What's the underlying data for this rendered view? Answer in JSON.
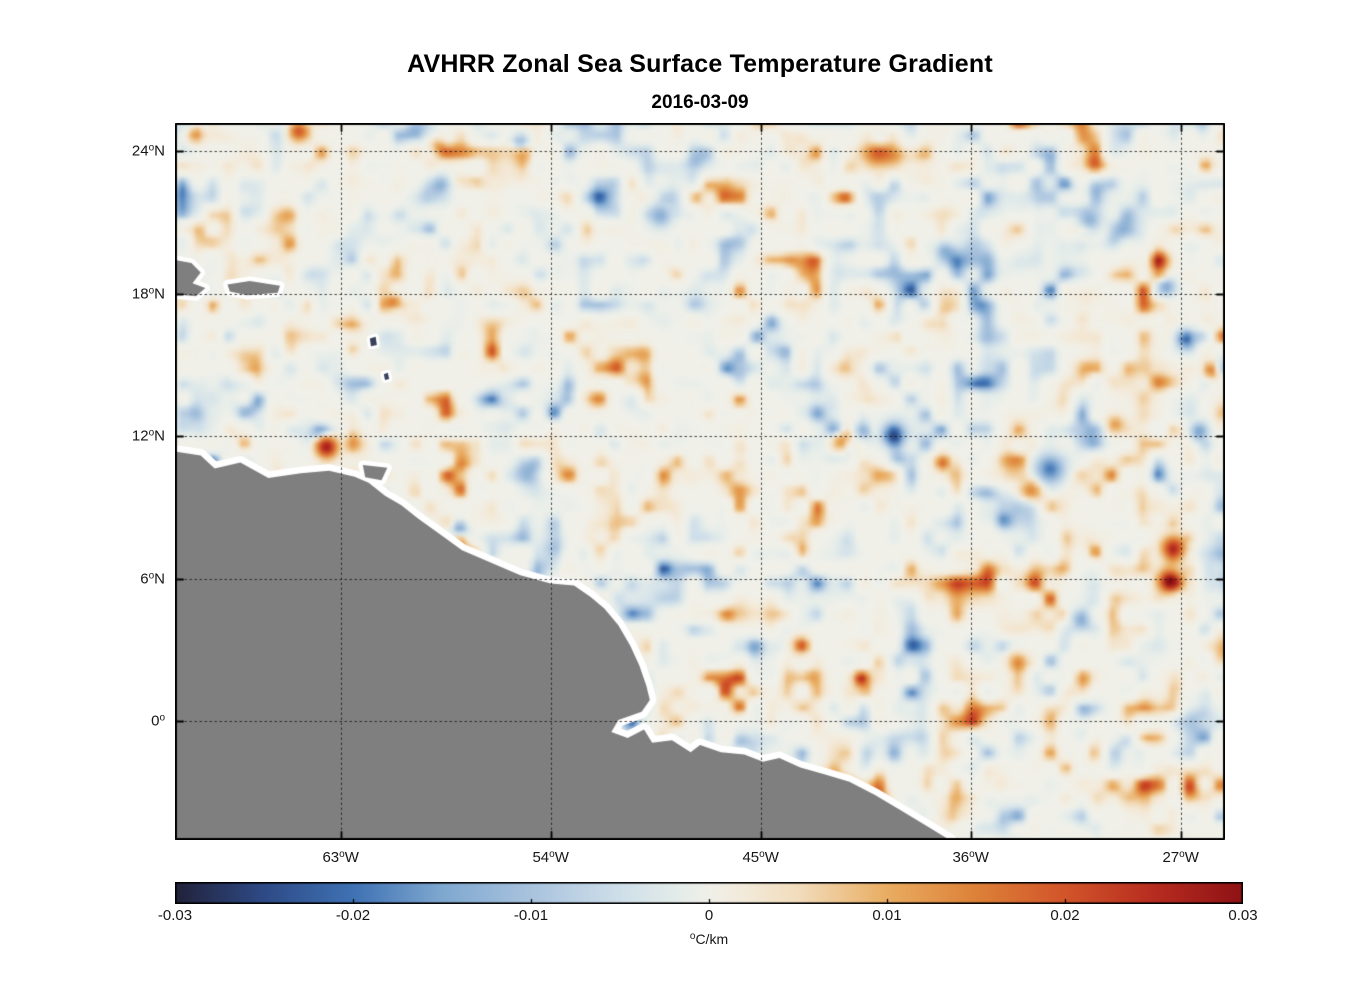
{
  "chart_data": {
    "type": "heatmap",
    "title": "AVHRR Zonal Sea Surface Temperature Gradient",
    "subtitle": "2016-03-09",
    "lon_range": [
      -70.1,
      -25.1
    ],
    "lat_range": [
      -5.0,
      25.2
    ],
    "grid": "dotted",
    "xticks": [
      {
        "text": "63",
        "sup": "o",
        "suffix": "W",
        "lon": -63
      },
      {
        "text": "54",
        "sup": "o",
        "suffix": "W",
        "lon": -54
      },
      {
        "text": "45",
        "sup": "o",
        "suffix": "W",
        "lon": -45
      },
      {
        "text": "36",
        "sup": "o",
        "suffix": "W",
        "lon": -36
      },
      {
        "text": "27",
        "sup": "o",
        "suffix": "W",
        "lon": -27
      }
    ],
    "yticks": [
      {
        "text": "24",
        "sup": "o",
        "suffix": "N",
        "lat": 24
      },
      {
        "text": "18",
        "sup": "o",
        "suffix": "N",
        "lat": 18
      },
      {
        "text": "12",
        "sup": "o",
        "suffix": "N",
        "lat": 12
      },
      {
        "text": "6",
        "sup": "o",
        "suffix": "N",
        "lat": 6
      },
      {
        "text": "0",
        "sup": "o",
        "suffix": "",
        "lat": 0
      }
    ],
    "colorbar": {
      "orientation": "horizontal",
      "range": [
        -0.03,
        0.03
      ],
      "tick_labels": [
        "-0.03",
        "-0.02",
        "-0.01",
        "0",
        "0.01",
        "0.02",
        "0.03"
      ],
      "unit": {
        "sup": "o",
        "text": "C/km"
      },
      "stops": [
        [
          0.0,
          "#22223a"
        ],
        [
          0.083,
          "#2e4a86"
        ],
        [
          0.167,
          "#3f72b4"
        ],
        [
          0.25,
          "#7fa8d0"
        ],
        [
          0.333,
          "#a9c3de"
        ],
        [
          0.417,
          "#cfdfe9"
        ],
        [
          0.47,
          "#e4ece9"
        ],
        [
          0.5,
          "#f0f0e9"
        ],
        [
          0.53,
          "#f3ebdc"
        ],
        [
          0.583,
          "#f2ddbd"
        ],
        [
          0.667,
          "#e9ad62"
        ],
        [
          0.75,
          "#dd8138"
        ],
        [
          0.833,
          "#d2552a"
        ],
        [
          0.917,
          "#b72c20"
        ],
        [
          1.0,
          "#8e1215"
        ]
      ]
    },
    "field": {
      "description": "Mottled mesoscale zonal SST gradient field, mostly near 0 C/km with scattered positive (orange) and negative (blue) anomalies",
      "noise_seed": 309,
      "noise_amplitude": 0.032,
      "features": [
        {
          "lon": -63.6,
          "lat": 11.55,
          "v": 0.028,
          "r": 0.5
        },
        {
          "lon": -64.8,
          "lat": 24.85,
          "v": 0.02,
          "r": 0.45
        },
        {
          "lon": -69.2,
          "lat": 24.7,
          "v": 0.013,
          "r": 0.35
        },
        {
          "lon": -58.8,
          "lat": 24.2,
          "v": 0.011,
          "r": 0.35
        },
        {
          "lon": -60.7,
          "lat": 17.7,
          "v": 0.011,
          "r": 0.3
        },
        {
          "lon": -41.4,
          "lat": 11.85,
          "v": 0.019,
          "r": 0.5
        },
        {
          "lon": -37.2,
          "lat": 10.9,
          "v": 0.018,
          "r": 0.35
        },
        {
          "lon": -33.4,
          "lat": 9.7,
          "v": 0.015,
          "r": 0.5
        },
        {
          "lon": -27.3,
          "lat": 7.3,
          "v": 0.024,
          "r": 0.55
        },
        {
          "lon": -27.5,
          "lat": 5.9,
          "v": 0.026,
          "r": 0.5
        },
        {
          "lon": -25.7,
          "lat": 14.8,
          "v": 0.02,
          "r": 0.35
        },
        {
          "lon": -40.7,
          "lat": 1.8,
          "v": 0.022,
          "r": 0.3
        },
        {
          "lon": -43.3,
          "lat": 3.2,
          "v": 0.013,
          "r": 0.4
        },
        {
          "lon": -34.0,
          "lat": 2.5,
          "v": 0.011,
          "r": 0.45
        },
        {
          "lon": -29.8,
          "lat": 12.5,
          "v": 0.012,
          "r": 0.4
        },
        {
          "lon": -39.3,
          "lat": 12.1,
          "v": -0.024,
          "r": 0.5
        },
        {
          "lon": -32.6,
          "lat": 10.6,
          "v": -0.02,
          "r": 0.65
        },
        {
          "lon": -26.8,
          "lat": 16.1,
          "v": -0.02,
          "r": 0.4
        },
        {
          "lon": -27.6,
          "lat": 18.3,
          "v": -0.015,
          "r": 0.4
        },
        {
          "lon": -26.2,
          "lat": 12.2,
          "v": -0.016,
          "r": 0.4
        },
        {
          "lon": -49.3,
          "lat": 21.3,
          "v": -0.014,
          "r": 0.5
        },
        {
          "lon": -58.7,
          "lat": 22.6,
          "v": -0.013,
          "r": 0.4
        },
        {
          "lon": -55.3,
          "lat": 24.4,
          "v": -0.011,
          "r": 0.35
        },
        {
          "lon": -57.9,
          "lat": 8.1,
          "v": -0.02,
          "r": 0.35
        },
        {
          "lon": -37.1,
          "lat": 19.8,
          "v": -0.013,
          "r": 0.4
        },
        {
          "lon": -30.9,
          "lat": 21.1,
          "v": -0.013,
          "r": 0.5
        },
        {
          "lon": -31.3,
          "lat": 4.3,
          "v": -0.012,
          "r": 0.4
        }
      ]
    },
    "land": {
      "fill": "#7f7f7f",
      "small_island_fill": "#39405c",
      "coast_buffer_color": "#ffffff",
      "mainland": [
        [
          -71.0,
          11.5
        ],
        [
          -69.0,
          11.2
        ],
        [
          -68.4,
          10.65
        ],
        [
          -67.3,
          10.9
        ],
        [
          -66.1,
          10.25
        ],
        [
          -64.7,
          10.45
        ],
        [
          -63.5,
          10.55
        ],
        [
          -62.4,
          10.3
        ],
        [
          -61.8,
          10.05
        ],
        [
          -61.1,
          9.5
        ],
        [
          -60.4,
          9.1
        ],
        [
          -59.7,
          8.55
        ],
        [
          -58.7,
          7.85
        ],
        [
          -57.8,
          7.2
        ],
        [
          -56.6,
          6.7
        ],
        [
          -55.3,
          6.15
        ],
        [
          -54.0,
          5.8
        ],
        [
          -53.0,
          5.72
        ],
        [
          -52.3,
          5.25
        ],
        [
          -51.7,
          4.75
        ],
        [
          -51.1,
          4.05
        ],
        [
          -50.6,
          3.2
        ],
        [
          -50.2,
          2.35
        ],
        [
          -49.9,
          1.5
        ],
        [
          -49.75,
          0.9
        ],
        [
          -50.1,
          0.4
        ],
        [
          -51.1,
          0.05
        ],
        [
          -51.4,
          -0.45
        ],
        [
          -50.7,
          -0.7
        ],
        [
          -50.0,
          -0.35
        ],
        [
          -49.65,
          -0.9
        ],
        [
          -48.8,
          -0.8
        ],
        [
          -48.0,
          -1.3
        ],
        [
          -47.6,
          -1.0
        ],
        [
          -46.7,
          -1.3
        ],
        [
          -45.7,
          -1.4
        ],
        [
          -44.9,
          -1.7
        ],
        [
          -44.2,
          -1.55
        ],
        [
          -43.3,
          -1.95
        ],
        [
          -42.2,
          -2.25
        ],
        [
          -41.2,
          -2.55
        ],
        [
          -40.1,
          -3.1
        ],
        [
          -39.0,
          -3.75
        ],
        [
          -37.9,
          -4.4
        ],
        [
          -36.9,
          -5.0
        ],
        [
          -36.3,
          -5.8
        ],
        [
          -71.0,
          -5.8
        ]
      ],
      "islands": [
        {
          "name": "hispaniola-east",
          "small": false,
          "points": [
            [
              -71.5,
              19.7
            ],
            [
              -69.4,
              19.3
            ],
            [
              -69.0,
              18.9
            ],
            [
              -69.35,
              18.45
            ],
            [
              -68.8,
              18.25
            ],
            [
              -69.2,
              17.9
            ],
            [
              -70.2,
              18.0
            ],
            [
              -71.5,
              18.2
            ]
          ]
        },
        {
          "name": "puerto-rico",
          "small": false,
          "points": [
            [
              -67.85,
              18.4
            ],
            [
              -66.9,
              18.55
            ],
            [
              -65.6,
              18.35
            ],
            [
              -65.7,
              18.05
            ],
            [
              -67.0,
              17.95
            ],
            [
              -67.75,
              18.1
            ]
          ]
        },
        {
          "name": "trinidad",
          "small": false,
          "points": [
            [
              -62.05,
              10.8
            ],
            [
              -61.0,
              10.68
            ],
            [
              -61.25,
              10.15
            ],
            [
              -61.95,
              10.28
            ]
          ]
        },
        {
          "name": "lesser-antilles-1",
          "small": true,
          "points": [
            [
              -61.75,
              16.12
            ],
            [
              -61.5,
              16.2
            ],
            [
              -61.45,
              15.85
            ],
            [
              -61.7,
              15.8
            ]
          ]
        },
        {
          "name": "lesser-antilles-2",
          "small": true,
          "points": [
            [
              -61.15,
              14.62
            ],
            [
              -60.98,
              14.68
            ],
            [
              -60.92,
              14.42
            ],
            [
              -61.1,
              14.38
            ]
          ]
        }
      ]
    }
  }
}
